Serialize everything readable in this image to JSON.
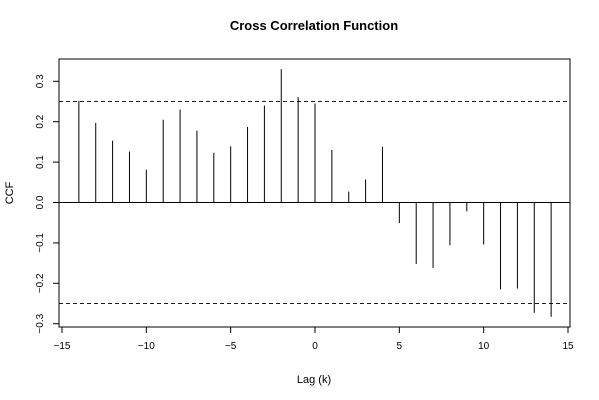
{
  "chart_data": {
    "type": "bar",
    "title": "Cross Correlation Function",
    "xlabel": "Lag (k)",
    "ylabel": "CCF",
    "xlim": [
      -15,
      15
    ],
    "ylim": [
      -0.3,
      0.33
    ],
    "x_ticks": [
      -15,
      -10,
      -5,
      0,
      5,
      10,
      15
    ],
    "x_tick_labels": [
      "−15",
      "−10",
      "−5",
      "0",
      "5",
      "10",
      "15"
    ],
    "y_ticks": [
      -0.3,
      -0.2,
      -0.1,
      0.0,
      0.1,
      0.2,
      0.3
    ],
    "y_tick_labels": [
      "−0.3",
      "−0.2",
      "−0.1",
      "0.0",
      "0.1",
      "0.2",
      "0.3"
    ],
    "lags": [
      -14,
      -13,
      -12,
      -11,
      -10,
      -9,
      -8,
      -7,
      -6,
      -5,
      -4,
      -3,
      -2,
      -1,
      0,
      1,
      2,
      3,
      4,
      5,
      6,
      7,
      8,
      9,
      10,
      11,
      12,
      13,
      14
    ],
    "values": [
      0.252,
      0.197,
      0.153,
      0.126,
      0.081,
      0.205,
      0.23,
      0.178,
      0.123,
      0.139,
      0.187,
      0.24,
      0.33,
      0.261,
      0.245,
      0.13,
      0.027,
      0.057,
      0.138,
      -0.051,
      -0.152,
      -0.162,
      -0.106,
      -0.022,
      -0.104,
      -0.215,
      -0.213,
      -0.273,
      -0.283
    ],
    "confidence_bounds": [
      0.25,
      -0.25
    ],
    "colors": {
      "bars": "#000000",
      "confidence": "#0000ff",
      "zero_line": "#000000"
    }
  }
}
